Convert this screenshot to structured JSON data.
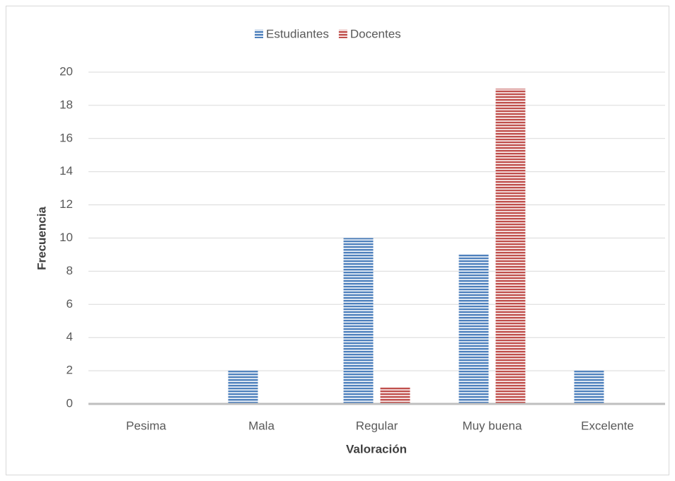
{
  "chart_data": {
    "type": "bar",
    "categories": [
      "Pesima",
      "Mala",
      "Regular",
      "Muy buena",
      "Excelente"
    ],
    "series": [
      {
        "name": "Estudiantes",
        "color": "#4f81bd",
        "values": [
          0,
          2,
          10,
          9,
          2
        ]
      },
      {
        "name": "Docentes",
        "color": "#c0504d",
        "values": [
          0,
          0,
          1,
          19,
          0
        ]
      }
    ],
    "xlabel": "Valoración",
    "ylabel": "Frecuencia",
    "ylim": [
      0,
      20
    ],
    "yticks": [
      0,
      2,
      4,
      6,
      8,
      10,
      12,
      14,
      16,
      18,
      20
    ],
    "grid": true,
    "legend": "top"
  }
}
